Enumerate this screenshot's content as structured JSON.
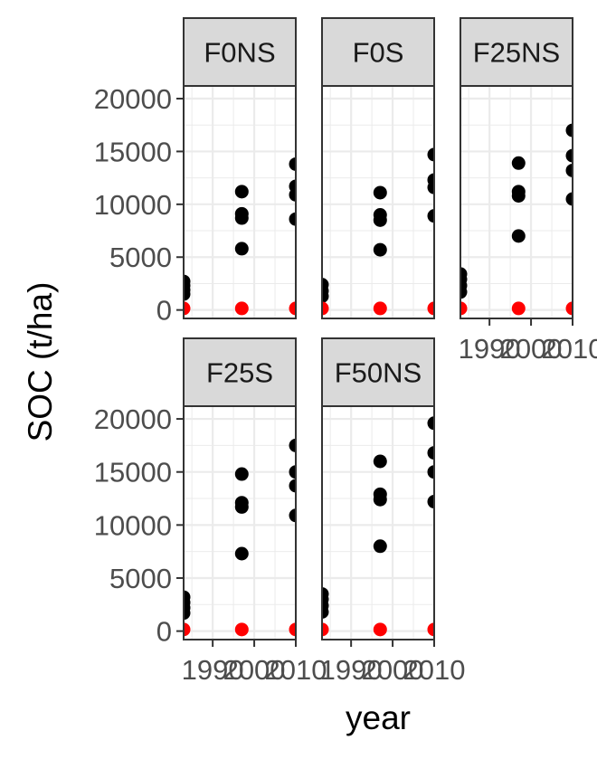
{
  "chart_data": {
    "type": "scatter",
    "xlabel": "year",
    "ylabel": "SOC (t/ha)",
    "xlim": [
      1983,
      2010
    ],
    "ylim": [
      -800,
      21200
    ],
    "x_ticks": [
      1990,
      2000,
      2010
    ],
    "y_ticks": [
      0,
      5000,
      10000,
      15000,
      20000
    ],
    "grid": true,
    "colors": {
      "observed": "#000000",
      "baseline": "#ff0000",
      "strip_fill": "#d9d9d9",
      "panel_border": "#333333",
      "grid": "#ebebeb"
    },
    "panels": [
      {
        "label": "F0NS",
        "points": [
          {
            "x": 1983,
            "y": 1500
          },
          {
            "x": 1983,
            "y": 1900
          },
          {
            "x": 1983,
            "y": 2300
          },
          {
            "x": 1983,
            "y": 2700
          },
          {
            "x": 1997,
            "y": 5800
          },
          {
            "x": 1997,
            "y": 8700
          },
          {
            "x": 1997,
            "y": 9100
          },
          {
            "x": 1997,
            "y": 11200
          },
          {
            "x": 2010,
            "y": 8600
          },
          {
            "x": 2010,
            "y": 10900
          },
          {
            "x": 2010,
            "y": 11700
          },
          {
            "x": 2010,
            "y": 13800
          }
        ],
        "baseline": [
          {
            "x": 1983,
            "y": 150
          },
          {
            "x": 1997,
            "y": 150
          },
          {
            "x": 2010,
            "y": 150
          }
        ]
      },
      {
        "label": "F0S",
        "points": [
          {
            "x": 1983,
            "y": 1300
          },
          {
            "x": 1983,
            "y": 1800
          },
          {
            "x": 1983,
            "y": 2400
          },
          {
            "x": 1997,
            "y": 5700
          },
          {
            "x": 1997,
            "y": 8500
          },
          {
            "x": 1997,
            "y": 9000
          },
          {
            "x": 1997,
            "y": 11100
          },
          {
            "x": 2010,
            "y": 8900
          },
          {
            "x": 2010,
            "y": 11600
          },
          {
            "x": 2010,
            "y": 12300
          },
          {
            "x": 2010,
            "y": 14700
          }
        ],
        "baseline": [
          {
            "x": 1983,
            "y": 150
          },
          {
            "x": 1997,
            "y": 150
          },
          {
            "x": 2010,
            "y": 150
          }
        ]
      },
      {
        "label": "F25NS",
        "points": [
          {
            "x": 1983,
            "y": 1700
          },
          {
            "x": 1983,
            "y": 2300
          },
          {
            "x": 1983,
            "y": 2900
          },
          {
            "x": 1983,
            "y": 3400
          },
          {
            "x": 1997,
            "y": 7000
          },
          {
            "x": 1997,
            "y": 10800
          },
          {
            "x": 1997,
            "y": 11200
          },
          {
            "x": 1997,
            "y": 13900
          },
          {
            "x": 2010,
            "y": 10500
          },
          {
            "x": 2010,
            "y": 13200
          },
          {
            "x": 2010,
            "y": 14600
          },
          {
            "x": 2010,
            "y": 17000
          }
        ],
        "baseline": [
          {
            "x": 1983,
            "y": 150
          },
          {
            "x": 1997,
            "y": 150
          },
          {
            "x": 2010,
            "y": 150
          }
        ]
      },
      {
        "label": "F25S",
        "points": [
          {
            "x": 1983,
            "y": 1700
          },
          {
            "x": 1983,
            "y": 2200
          },
          {
            "x": 1983,
            "y": 2700
          },
          {
            "x": 1983,
            "y": 3200
          },
          {
            "x": 1997,
            "y": 7300
          },
          {
            "x": 1997,
            "y": 11700
          },
          {
            "x": 1997,
            "y": 12100
          },
          {
            "x": 1997,
            "y": 14800
          },
          {
            "x": 2010,
            "y": 10900
          },
          {
            "x": 2010,
            "y": 13700
          },
          {
            "x": 2010,
            "y": 15000
          },
          {
            "x": 2010,
            "y": 17500
          }
        ],
        "baseline": [
          {
            "x": 1983,
            "y": 150
          },
          {
            "x": 1997,
            "y": 150
          },
          {
            "x": 2010,
            "y": 150
          }
        ]
      },
      {
        "label": "F50NS",
        "points": [
          {
            "x": 1983,
            "y": 1800
          },
          {
            "x": 1983,
            "y": 2400
          },
          {
            "x": 1983,
            "y": 3000
          },
          {
            "x": 1983,
            "y": 3500
          },
          {
            "x": 1997,
            "y": 8000
          },
          {
            "x": 1997,
            "y": 12400
          },
          {
            "x": 1997,
            "y": 12900
          },
          {
            "x": 1997,
            "y": 16000
          },
          {
            "x": 2010,
            "y": 12200
          },
          {
            "x": 2010,
            "y": 15000
          },
          {
            "x": 2010,
            "y": 16800
          },
          {
            "x": 2010,
            "y": 19600
          }
        ],
        "baseline": [
          {
            "x": 1983,
            "y": 150
          },
          {
            "x": 1997,
            "y": 150
          },
          {
            "x": 2010,
            "y": 150
          }
        ]
      }
    ]
  }
}
